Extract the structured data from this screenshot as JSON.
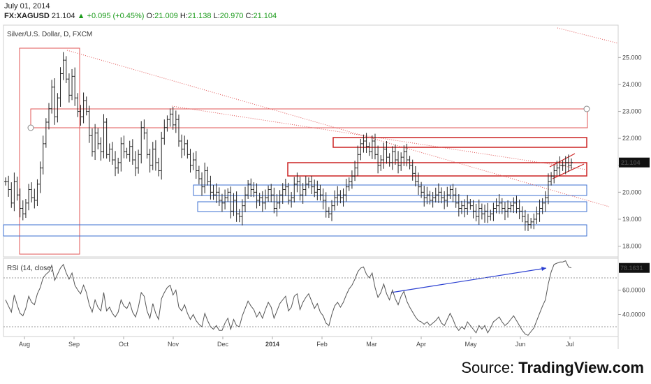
{
  "header": {
    "date": "July 01, 2014",
    "symbol": "FX:XAGUSD",
    "last": "21.104",
    "change": "+0.095 (+0.45%)",
    "open_label": "O:",
    "open": "21.009",
    "high_label": "H:",
    "high": "21.138",
    "low_label": "L:",
    "low": "20.970",
    "close_label": "C:",
    "close": "21.104"
  },
  "source": {
    "prefix": "Source: ",
    "brand": "TradingView.com"
  },
  "chart_data": [
    {
      "type": "ohlc",
      "title": "Silver/U.S. Dollar, D, FXCM",
      "price_axis": {
        "ylim": [
          17.6,
          26.2
        ],
        "ticks": [
          "25.000",
          "24.000",
          "23.000",
          "22.000",
          "21.000",
          "20.000",
          "19.000",
          "18.000"
        ],
        "last_label": "21.104"
      },
      "x_labels": [
        "Aug",
        "Sep",
        "Oct",
        "Nov",
        "Dec",
        "2014",
        "Feb",
        "Mar",
        "Apr",
        "May",
        "Jun",
        "Jul"
      ],
      "closes": [
        20.4,
        20.1,
        19.6,
        20.4,
        19.9,
        19.4,
        19.2,
        19.6,
        20.1,
        19.8,
        19.7,
        20.3,
        20.9,
        21.8,
        22.6,
        23.1,
        23.9,
        22.8,
        23.5,
        24.4,
        24.9,
        24.2,
        23.6,
        24.3,
        23.5,
        23.0,
        22.8,
        23.4,
        23.0,
        22.1,
        21.5,
        22.2,
        21.8,
        21.5,
        22.6,
        21.4,
        21.6,
        21.2,
        20.9,
        21.1,
        21.8,
        21.5,
        21.4,
        21.7,
        21.2,
        20.9,
        21.4,
        22.4,
        22.2,
        21.4,
        21.0,
        21.6,
        21.1,
        20.8,
        22.0,
        22.4,
        22.7,
        22.9,
        22.5,
        22.7,
        21.9,
        21.6,
        21.8,
        21.4,
        21.0,
        21.2,
        20.8,
        20.5,
        20.2,
        20.8,
        20.4,
        20.0,
        19.9,
        20.0,
        19.7,
        19.6,
        19.8,
        20.0,
        19.3,
        19.7,
        19.2,
        19.1,
        19.5,
        19.9,
        20.3,
        20.1,
        20.0,
        19.7,
        19.8,
        19.6,
        19.8,
        20.1,
        19.9,
        19.4,
        19.6,
        19.9,
        20.1,
        20.2,
        19.7,
        19.8,
        20.3,
        20.4,
        19.9,
        20.1,
        20.3,
        20.4,
        20.2,
        20.0,
        20.1,
        19.9,
        19.7,
        19.3,
        19.2,
        19.5,
        19.8,
        19.9,
        19.8,
        19.9,
        20.2,
        20.4,
        20.6,
        20.9,
        21.4,
        21.8,
        21.9,
        21.7,
        21.5,
        21.9,
        21.4,
        21.0,
        21.2,
        21.6,
        21.3,
        21.1,
        21.5,
        21.2,
        21.0,
        21.3,
        21.5,
        21.2,
        21.0,
        20.7,
        20.4,
        20.2,
        20.0,
        19.8,
        19.9,
        19.7,
        19.8,
        19.9,
        20.0,
        19.8,
        19.7,
        19.9,
        20.1,
        19.9,
        19.6,
        19.4,
        19.5,
        19.4,
        19.6,
        19.5,
        19.3,
        19.1,
        19.4,
        19.2,
        19.3,
        19.1,
        19.2,
        19.4,
        19.5,
        19.6,
        19.4,
        19.3,
        19.4,
        19.5,
        19.6,
        19.4,
        19.3,
        19.1,
        18.9,
        18.8,
        18.9,
        19.0,
        19.2,
        19.4,
        19.6,
        19.8,
        20.4,
        20.6,
        20.8,
        20.9,
        21.0,
        21.0,
        21.1,
        21.0,
        21.104
      ]
    },
    {
      "type": "line",
      "title": "RSI (14, close)",
      "ylim": [
        22,
        86
      ],
      "ticks": [
        "60.0000",
        "40.0000"
      ],
      "last_label": "78.1631",
      "values": [
        52,
        47,
        42,
        56,
        48,
        41,
        39,
        45,
        55,
        50,
        48,
        57,
        62,
        70,
        73,
        75,
        80,
        68,
        73,
        78,
        81,
        74,
        69,
        74,
        64,
        60,
        57,
        64,
        58,
        48,
        42,
        52,
        46,
        43,
        58,
        43,
        46,
        41,
        38,
        42,
        52,
        47,
        45,
        50,
        42,
        38,
        46,
        58,
        55,
        43,
        37,
        49,
        41,
        36,
        53,
        58,
        62,
        64,
        56,
        60,
        46,
        43,
        48,
        41,
        36,
        40,
        35,
        32,
        30,
        41,
        35,
        30,
        28,
        31,
        27,
        27,
        33,
        37,
        28,
        36,
        31,
        30,
        39,
        45,
        51,
        47,
        44,
        38,
        42,
        37,
        44,
        50,
        46,
        37,
        43,
        49,
        52,
        55,
        43,
        46,
        55,
        57,
        44,
        50,
        54,
        57,
        51,
        45,
        49,
        42,
        39,
        33,
        31,
        40,
        47,
        50,
        46,
        50,
        56,
        61,
        64,
        69,
        75,
        78,
        79,
        73,
        70,
        74,
        62,
        54,
        58,
        65,
        57,
        52,
        60,
        53,
        48,
        55,
        59,
        51,
        46,
        42,
        38,
        35,
        34,
        32,
        34,
        31,
        33,
        35,
        38,
        33,
        31,
        36,
        41,
        36,
        30,
        27,
        30,
        28,
        34,
        31,
        28,
        25,
        31,
        28,
        31,
        25,
        29,
        34,
        36,
        38,
        34,
        31,
        33,
        36,
        39,
        35,
        31,
        27,
        24,
        23,
        26,
        29,
        35,
        41,
        47,
        52,
        65,
        75,
        81,
        82,
        83,
        83,
        84,
        79,
        78.1631
      ]
    }
  ]
}
